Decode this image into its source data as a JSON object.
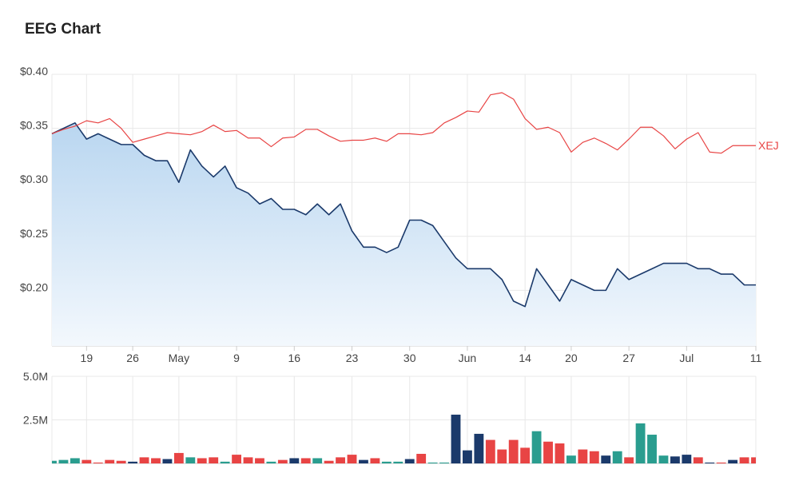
{
  "title": "EEG Chart",
  "colors": {
    "price_line": "#1b3a6b",
    "price_fill_top": "#b9d6f0",
    "price_fill_bottom": "#f3f8fd",
    "index_line": "#e84444",
    "vol_up": "#2a9d8f",
    "vol_down": "#e84444",
    "vol_neutral": "#1b3a6b",
    "grid": "#e8e8e8"
  },
  "chart_data": [
    {
      "type": "line",
      "name": "price",
      "yticks": [
        "$0.40",
        "$0.35",
        "$0.30",
        "$0.25",
        "$0.20"
      ],
      "ytick_values": [
        0.4,
        0.35,
        0.3,
        0.25,
        0.2
      ],
      "ylim": [
        0.1485,
        0.4
      ],
      "xticks": [
        {
          "label": "19",
          "index": 3
        },
        {
          "label": "26",
          "index": 7
        },
        {
          "label": "May",
          "index": 11
        },
        {
          "label": "9",
          "index": 16
        },
        {
          "label": "16",
          "index": 21
        },
        {
          "label": "23",
          "index": 26
        },
        {
          "label": "30",
          "index": 31
        },
        {
          "label": "Jun",
          "index": 36
        },
        {
          "label": "14",
          "index": 41
        },
        {
          "label": "20",
          "index": 45
        },
        {
          "label": "27",
          "index": 50
        },
        {
          "label": "Jul",
          "index": 55
        },
        {
          "label": "11",
          "index": 61
        }
      ],
      "n_points": 62,
      "series": [
        {
          "name": "EEG",
          "values": [
            0.345,
            0.35,
            0.355,
            0.34,
            0.345,
            0.34,
            0.335,
            0.335,
            0.325,
            0.32,
            0.32,
            0.3,
            0.33,
            0.315,
            0.305,
            0.315,
            0.295,
            0.29,
            0.28,
            0.285,
            0.275,
            0.275,
            0.27,
            0.28,
            0.27,
            0.28,
            0.255,
            0.24,
            0.24,
            0.235,
            0.24,
            0.265,
            0.265,
            0.26,
            0.245,
            0.23,
            0.22,
            0.22,
            0.22,
            0.21,
            0.19,
            0.185,
            0.22,
            0.205,
            0.19,
            0.21,
            0.205,
            0.2,
            0.2,
            0.22,
            0.21,
            0.215,
            0.22,
            0.225,
            0.225,
            0.225,
            0.22,
            0.22,
            0.215,
            0.215,
            0.205,
            0.205
          ]
        },
        {
          "name": "XEJ",
          "values": [
            0.345,
            0.349,
            0.352,
            0.357,
            0.355,
            0.359,
            0.35,
            0.337,
            0.34,
            0.343,
            0.346,
            0.345,
            0.344,
            0.347,
            0.353,
            0.347,
            0.348,
            0.341,
            0.341,
            0.333,
            0.341,
            0.342,
            0.349,
            0.349,
            0.343,
            0.338,
            0.339,
            0.339,
            0.341,
            0.338,
            0.345,
            0.345,
            0.344,
            0.346,
            0.355,
            0.36,
            0.366,
            0.365,
            0.381,
            0.383,
            0.377,
            0.359,
            0.349,
            0.351,
            0.346,
            0.328,
            0.337,
            0.341,
            0.336,
            0.33,
            0.34,
            0.351,
            0.351,
            0.343,
            0.331,
            0.34,
            0.346,
            0.328,
            0.327,
            0.334,
            0.334,
            0.334
          ]
        }
      ]
    },
    {
      "type": "bar",
      "name": "volume",
      "yticks": [
        "5.0M",
        "2.5M"
      ],
      "ytick_values": [
        5000000,
        2500000
      ],
      "ylim": [
        0,
        5000000
      ],
      "n_points": 62,
      "values": [
        150000,
        200000,
        300000,
        200000,
        50000,
        200000,
        150000,
        100000,
        350000,
        300000,
        250000,
        600000,
        350000,
        300000,
        350000,
        100000,
        500000,
        350000,
        300000,
        100000,
        200000,
        300000,
        300000,
        300000,
        150000,
        350000,
        500000,
        200000,
        300000,
        100000,
        100000,
        250000,
        550000,
        50000,
        50000,
        2800000,
        750000,
        1700000,
        1350000,
        800000,
        1350000,
        900000,
        1850000,
        1250000,
        1150000,
        450000,
        800000,
        700000,
        450000,
        700000,
        350000,
        2300000,
        1650000,
        450000,
        400000,
        500000,
        350000,
        50000,
        50000,
        200000,
        350000,
        350000
      ],
      "colors": [
        "up",
        "up",
        "up",
        "down",
        "down",
        "down",
        "down",
        "neutral",
        "down",
        "down",
        "neutral",
        "down",
        "up",
        "down",
        "down",
        "up",
        "down",
        "down",
        "down",
        "up",
        "down",
        "neutral",
        "down",
        "up",
        "down",
        "down",
        "down",
        "neutral",
        "down",
        "up",
        "up",
        "neutral",
        "down",
        "up",
        "up",
        "neutral",
        "neutral",
        "neutral",
        "down",
        "down",
        "down",
        "down",
        "up",
        "down",
        "down",
        "up",
        "down",
        "down",
        "neutral",
        "up",
        "down",
        "up",
        "up",
        "up",
        "neutral",
        "neutral",
        "down",
        "neutral",
        "down",
        "neutral",
        "down",
        "down"
      ]
    }
  ]
}
